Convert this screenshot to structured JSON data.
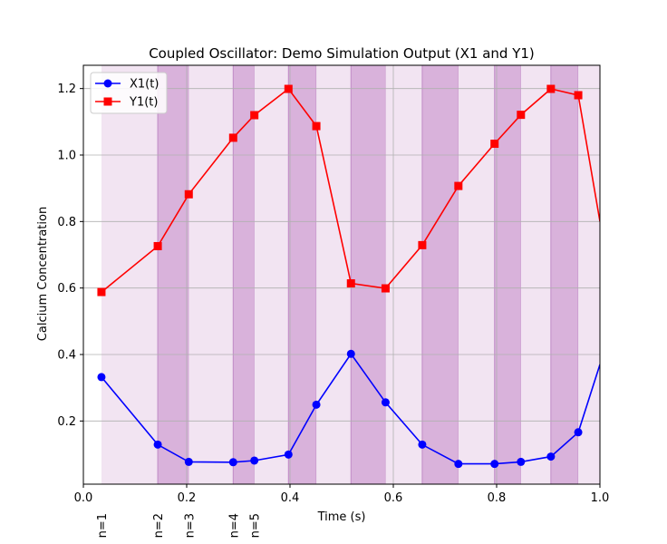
{
  "chart_data": {
    "type": "line",
    "title": "Coupled Oscillator: Demo Simulation Output (X1 and Y1)",
    "xlabel": "Time (s)",
    "ylabel": "Calcium Concentration",
    "xlim": [
      0.0,
      1.0
    ],
    "ylim": [
      0.01,
      1.27
    ],
    "xticks": [
      0.0,
      0.2,
      0.4,
      0.6,
      0.8,
      1.0
    ],
    "xtick_labels": [
      "0.0",
      "0.2",
      "0.4",
      "0.6",
      "0.8",
      "1.0"
    ],
    "yticks": [
      0.2,
      0.4,
      0.6,
      0.8,
      1.0,
      1.2
    ],
    "ytick_labels": [
      "0.2",
      "0.4",
      "0.6",
      "0.8",
      "1.0",
      "1.2"
    ],
    "grid": true,
    "legend_position": "upper-left",
    "x": [
      0.035,
      0.144,
      0.204,
      0.29,
      0.331,
      0.397,
      0.451,
      0.518,
      0.585,
      0.656,
      0.726,
      0.796,
      0.847,
      0.905,
      0.958,
      1.0
    ],
    "series": [
      {
        "name": "X1(t)",
        "color": "#0000ff",
        "marker": "circle",
        "values": [
          0.332,
          0.129,
          0.077,
          0.076,
          0.081,
          0.099,
          0.249,
          0.402,
          0.256,
          0.129,
          0.071,
          0.071,
          0.077,
          0.093,
          0.166,
          0.37
        ]
      },
      {
        "name": "Y1(t)",
        "color": "#ff0000",
        "marker": "square",
        "values": [
          0.588,
          0.726,
          0.882,
          1.052,
          1.12,
          1.199,
          1.087,
          0.614,
          0.599,
          0.729,
          0.907,
          1.034,
          1.121,
          1.199,
          1.18,
          0.8
        ]
      }
    ],
    "shaded_bands": [
      {
        "start": 0.035,
        "end": 0.144,
        "shade": "light"
      },
      {
        "start": 0.144,
        "end": 0.204,
        "shade": "dark"
      },
      {
        "start": 0.204,
        "end": 0.29,
        "shade": "light"
      },
      {
        "start": 0.29,
        "end": 0.331,
        "shade": "dark"
      },
      {
        "start": 0.331,
        "end": 0.397,
        "shade": "light"
      },
      {
        "start": 0.397,
        "end": 0.451,
        "shade": "dark"
      },
      {
        "start": 0.451,
        "end": 0.518,
        "shade": "light"
      },
      {
        "start": 0.518,
        "end": 0.585,
        "shade": "dark"
      },
      {
        "start": 0.585,
        "end": 0.656,
        "shade": "light"
      },
      {
        "start": 0.656,
        "end": 0.726,
        "shade": "dark"
      },
      {
        "start": 0.726,
        "end": 0.796,
        "shade": "light"
      },
      {
        "start": 0.796,
        "end": 0.847,
        "shade": "dark"
      },
      {
        "start": 0.847,
        "end": 0.905,
        "shade": "light"
      },
      {
        "start": 0.905,
        "end": 0.958,
        "shade": "dark"
      },
      {
        "start": 0.958,
        "end": 1.0,
        "shade": "light"
      }
    ],
    "band_colors": {
      "light": "#f2e4f2",
      "dark": "#d9b2db",
      "edge": "#c08ac6"
    },
    "markers_below_axis": [
      {
        "label": "n=1",
        "x": 0.035
      },
      {
        "label": "n=2",
        "x": 0.144
      },
      {
        "label": "n=3",
        "x": 0.204
      },
      {
        "label": "n=4",
        "x": 0.29
      },
      {
        "label": "n=5",
        "x": 0.331
      }
    ]
  }
}
